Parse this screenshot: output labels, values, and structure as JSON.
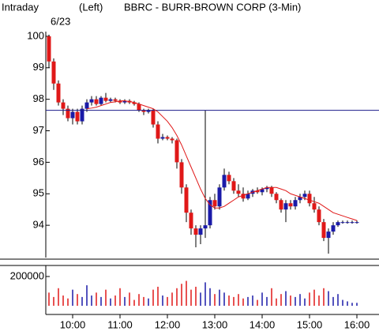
{
  "chart_data": {
    "type": "candlestick",
    "title": "BBRC - BURR-BROWN CORP (3-Min)",
    "mode": "Intraday",
    "axis_side": "(Left)",
    "date": "6/23",
    "categories": [
      null,
      null,
      null,
      null,
      null,
      "10:00",
      null,
      null,
      null,
      null,
      null,
      null,
      null,
      null,
      null,
      "11:00",
      null,
      null,
      null,
      null,
      null,
      null,
      null,
      null,
      null,
      "12:00",
      null,
      null,
      null,
      null,
      null,
      null,
      null,
      null,
      null,
      "13:00",
      null,
      null,
      null,
      null,
      null,
      null,
      null,
      null,
      null,
      "14:00",
      null,
      null,
      null,
      null,
      null,
      null,
      null,
      null,
      null,
      "15:00",
      null,
      null,
      null,
      null,
      null,
      null,
      null,
      null,
      null,
      "16:00"
    ],
    "open": [
      100.0,
      99.2,
      98.5,
      97.9,
      97.7,
      97.4,
      97.6,
      97.3,
      97.7,
      97.9,
      98.0,
      97.85,
      98.05,
      97.95,
      98.0,
      97.95,
      97.9,
      97.95,
      97.9,
      97.85,
      97.65,
      97.6,
      97.65,
      97.2,
      96.75,
      96.8,
      96.75,
      96.7,
      96.0,
      95.2,
      94.4,
      93.9,
      93.7,
      93.9,
      94.0,
      94.8,
      94.6,
      95.2,
      95.6,
      95.4,
      95.1,
      95.0,
      94.85,
      95.0,
      95.1,
      95.05,
      95.15,
      95.2,
      95.0,
      94.8,
      94.5,
      94.7,
      94.6,
      94.8,
      94.9,
      95.0,
      94.7,
      94.5,
      94.1,
      93.6,
      93.8,
      94.0,
      94.1,
      94.1,
      94.1,
      94.1
    ],
    "high": [
      100.05,
      99.3,
      98.6,
      98.0,
      97.8,
      97.7,
      97.7,
      97.8,
      98.0,
      98.1,
      98.1,
      98.1,
      98.2,
      98.05,
      98.05,
      98.0,
      98.0,
      98.0,
      97.95,
      97.9,
      97.7,
      97.7,
      97.7,
      97.3,
      96.9,
      96.85,
      96.8,
      96.75,
      96.1,
      95.3,
      94.5,
      94.0,
      94.0,
      97.65,
      94.9,
      95.0,
      95.3,
      95.8,
      95.7,
      95.5,
      95.3,
      95.2,
      95.1,
      95.15,
      95.2,
      95.2,
      95.25,
      95.25,
      95.05,
      94.85,
      94.8,
      94.8,
      94.9,
      95.0,
      95.1,
      95.1,
      94.9,
      94.6,
      94.2,
      93.9,
      94.1,
      94.15,
      94.15,
      94.15,
      94.15,
      94.15
    ],
    "low": [
      99.0,
      98.3,
      97.8,
      97.5,
      97.3,
      97.2,
      97.2,
      97.2,
      97.6,
      97.8,
      97.8,
      97.8,
      97.9,
      97.9,
      97.9,
      97.85,
      97.85,
      97.85,
      97.8,
      97.6,
      97.5,
      97.55,
      97.1,
      96.6,
      96.7,
      96.7,
      96.6,
      95.8,
      95.0,
      94.1,
      93.7,
      93.3,
      93.4,
      93.6,
      93.9,
      94.5,
      94.5,
      95.1,
      95.3,
      95.0,
      94.9,
      94.75,
      94.8,
      94.9,
      95.0,
      94.95,
      95.05,
      94.9,
      94.7,
      94.4,
      94.1,
      94.5,
      94.5,
      94.7,
      94.8,
      94.6,
      94.4,
      94.0,
      93.5,
      93.1,
      93.7,
      93.95,
      94.05,
      94.05,
      94.05,
      94.05
    ],
    "close": [
      99.2,
      98.5,
      97.9,
      97.7,
      97.4,
      97.6,
      97.3,
      97.7,
      97.9,
      98.0,
      97.85,
      98.05,
      97.95,
      98.0,
      97.95,
      97.9,
      97.95,
      97.9,
      97.85,
      97.65,
      97.6,
      97.65,
      97.2,
      96.75,
      96.8,
      96.75,
      96.7,
      96.0,
      95.2,
      94.4,
      93.9,
      93.7,
      93.9,
      94.0,
      94.8,
      94.6,
      95.2,
      95.6,
      95.4,
      95.1,
      95.0,
      94.85,
      95.0,
      95.1,
      95.05,
      95.15,
      95.2,
      95.0,
      94.8,
      94.5,
      94.7,
      94.6,
      94.8,
      94.9,
      95.0,
      94.7,
      94.5,
      94.1,
      93.6,
      93.8,
      94.0,
      94.1,
      94.1,
      94.1,
      94.1,
      94.1
    ],
    "moving_average": [
      null,
      null,
      null,
      null,
      null,
      null,
      null,
      null,
      97.7,
      97.72,
      97.75,
      97.8,
      97.85,
      97.9,
      97.92,
      97.95,
      97.95,
      97.93,
      97.9,
      97.85,
      97.8,
      97.75,
      97.7,
      97.6,
      97.45,
      97.3,
      97.1,
      96.85,
      96.55,
      96.2,
      95.85,
      95.5,
      95.15,
      94.85,
      94.65,
      94.55,
      94.55,
      94.6,
      94.7,
      94.8,
      94.9,
      94.95,
      95.0,
      95.05,
      95.1,
      95.15,
      95.2,
      95.2,
      95.2,
      95.15,
      95.1,
      95.0,
      94.95,
      94.9,
      94.85,
      94.8,
      94.75,
      94.7,
      94.6,
      94.5,
      94.4,
      94.35,
      94.3,
      94.25,
      94.2,
      94.15
    ],
    "volume": [
      90000,
      60000,
      120000,
      70000,
      50000,
      110000,
      80000,
      60000,
      140000,
      70000,
      90000,
      60000,
      110000,
      50000,
      70000,
      120000,
      60000,
      90000,
      40000,
      80000,
      60000,
      50000,
      110000,
      130000,
      70000,
      60000,
      90000,
      120000,
      150000,
      170000,
      110000,
      130000,
      90000,
      160000,
      120000,
      80000,
      110000,
      90000,
      70000,
      60000,
      80000,
      50000,
      60000,
      70000,
      40000,
      90000,
      60000,
      120000,
      50000,
      80000,
      100000,
      70000,
      60000,
      80000,
      50000,
      90000,
      110000,
      70000,
      120000,
      100000,
      60000,
      80000,
      40000,
      30000,
      20000,
      20000
    ],
    "up_color": "#1a1aa8",
    "down_color": "#e01818",
    "ma_color": "#e01818",
    "reference_line": 97.65,
    "reference_color": "#1a1a8a",
    "ylim": [
      93.0,
      100.65
    ],
    "yticks": [
      94,
      95,
      96,
      97,
      98,
      99,
      100
    ],
    "volume_lim": [
      0,
      270000
    ],
    "volume_ticks": [
      200000
    ]
  }
}
